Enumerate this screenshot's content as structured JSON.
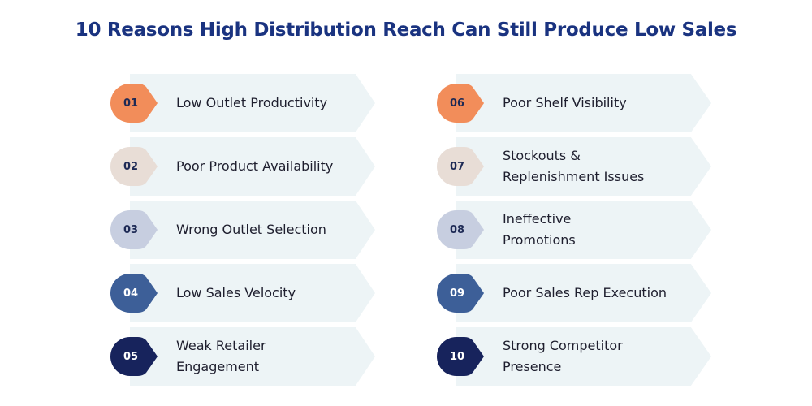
{
  "title": "10 Reasons High Distribution Reach Can Still Produce Low Sales",
  "colors": {
    "title": "#1a3380",
    "bar": "#edf4f6",
    "text": "#1e1e2e"
  },
  "left": [
    {
      "num": "01",
      "label": "Low Outlet Productivity",
      "color": "#f28d5a",
      "numColor": "#1e2a55"
    },
    {
      "num": "02",
      "label": "Poor Product Availability",
      "color": "#e8ddd6",
      "numColor": "#1e2a55"
    },
    {
      "num": "03",
      "label": "Wrong Outlet Selection",
      "color": "#c7cee0",
      "numColor": "#1e2a55"
    },
    {
      "num": "04",
      "label": "Low Sales Velocity",
      "color": "#3d5f98",
      "numColor": "#ffffff"
    },
    {
      "num": "05",
      "label": "Weak Retailer\nEngagement",
      "color": "#17235c",
      "numColor": "#ffffff"
    }
  ],
  "right": [
    {
      "num": "06",
      "label": "Poor Shelf Visibility",
      "color": "#f28d5a",
      "numColor": "#1e2a55"
    },
    {
      "num": "07",
      "label": "Stockouts &\nReplenishment Issues",
      "color": "#e8ddd6",
      "numColor": "#1e2a55"
    },
    {
      "num": "08",
      "label": "Ineffective\nPromotions",
      "color": "#c7cee0",
      "numColor": "#1e2a55"
    },
    {
      "num": "09",
      "label": "Poor Sales Rep Execution",
      "color": "#3d5f98",
      "numColor": "#ffffff"
    },
    {
      "num": "10",
      "label": "Strong Competitor\nPresence",
      "color": "#17235c",
      "numColor": "#ffffff"
    }
  ]
}
